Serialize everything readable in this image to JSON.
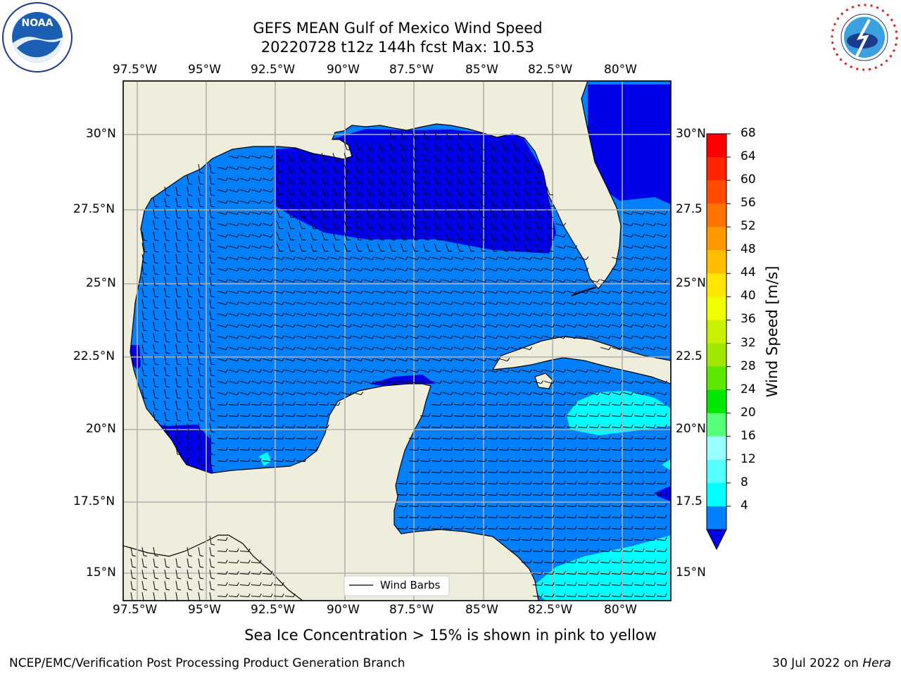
{
  "title": {
    "line1": "GEFS MEAN Gulf of Mexico Wind Speed",
    "line2": "20220728 t12z 144h fcst   Max: 10.53"
  },
  "map": {
    "lon_range": [
      -98,
      -78
    ],
    "lat_range": [
      14.0,
      31.6
    ],
    "lon_ticks": [
      "97.5°W",
      "95°W",
      "92.5°W",
      "90°W",
      "87.5°W",
      "85°W",
      "82.5°W",
      "80°W"
    ],
    "lat_ticks_left": [
      "30°N",
      "27.5°N",
      "25°N",
      "22.5°N",
      "20°N",
      "17.5°N",
      "15°N"
    ],
    "lat_ticks_right": [
      "30°N",
      "27.5",
      "25°N",
      "22.5",
      "20°N",
      "17.5",
      "15°N"
    ],
    "legend_label": "Wind Barbs",
    "colors": {
      "land": "#efeddc",
      "sea_4_8": "#0080ff",
      "sea_lt4": "#0000e6",
      "sea_8_12": "#00ffff"
    }
  },
  "colorbar": {
    "label": "Wind Speed [m/s]",
    "ticks": [
      "68",
      "64",
      "60",
      "56",
      "52",
      "48",
      "44",
      "40",
      "36",
      "32",
      "28",
      "24",
      "20",
      "16",
      "12",
      "8",
      "4"
    ],
    "colors": [
      "#ff0000",
      "#ff2600",
      "#ff4d00",
      "#ff7300",
      "#ff9900",
      "#ffbf00",
      "#ffe600",
      "#f0ff00",
      "#c8f000",
      "#a0e600",
      "#5de600",
      "#00e600",
      "#55ff77",
      "#99ffff",
      "#55ffff",
      "#00ffff",
      "#0080ff"
    ],
    "extend_color": "#0000e6"
  },
  "notes": {
    "ice": "Sea Ice Concentration > 15% is shown in pink to yellow",
    "branch": "NCEP/EMC/Verification Post Processing Product Generation Branch",
    "date": "30 Jul 2022 on ",
    "machine": "Hera"
  },
  "logos": {
    "left": "NOAA",
    "right": "NATIONAL WEATHER SERVICE"
  }
}
